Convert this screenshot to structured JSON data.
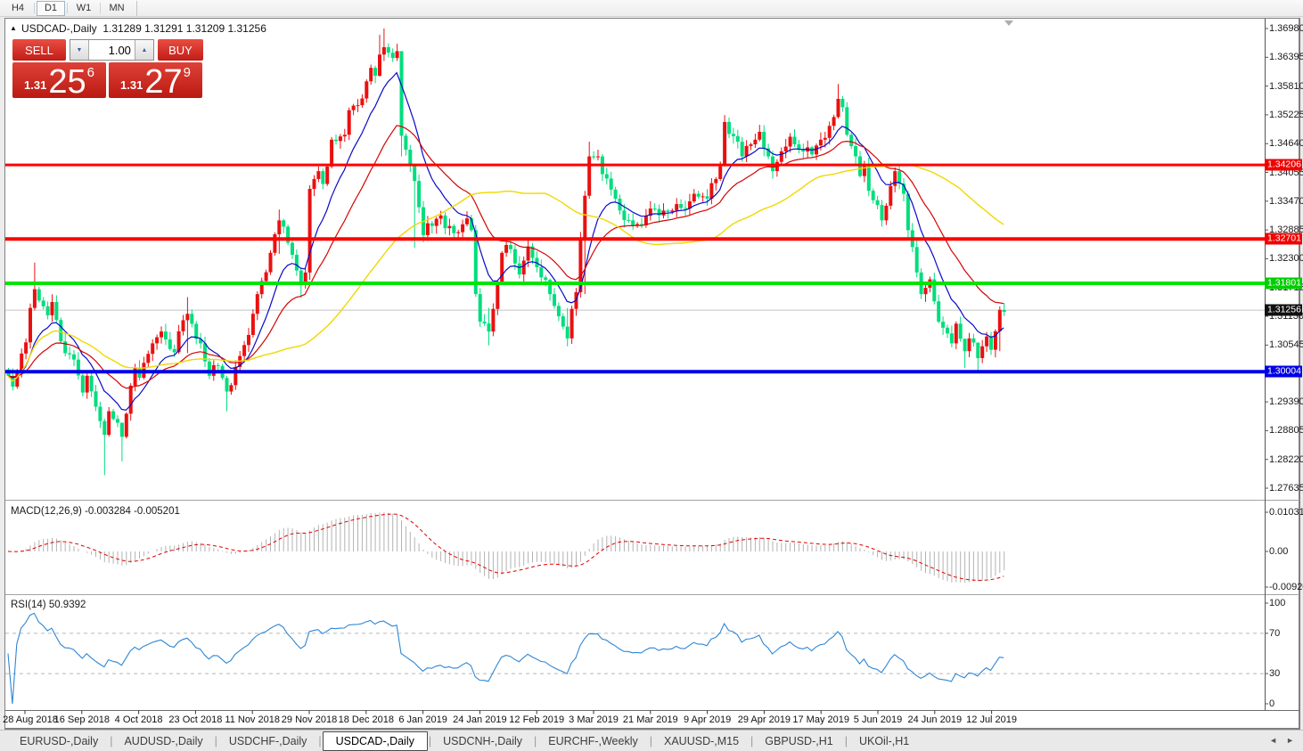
{
  "toolbar": {
    "buttons": [
      "H4",
      "D1",
      "W1",
      "MN"
    ],
    "active": "D1"
  },
  "header": {
    "arrow": "▲",
    "symbol": "USDCAD-,Daily",
    "ohlc": "1.31289 1.31291 1.31209 1.31256"
  },
  "trade_panel": {
    "sell_label": "SELL",
    "buy_label": "BUY",
    "volume": "1.00",
    "spinner_down": "▼",
    "spinner_up": "▲",
    "sell_price": {
      "prefix": "1.31",
      "big": "25",
      "sup": "6"
    },
    "buy_price": {
      "prefix": "1.31",
      "big": "27",
      "sup": "9"
    }
  },
  "price_axis": {
    "labels": [
      "1.36980",
      "1.36395",
      "1.35810",
      "1.35225",
      "1.34640",
      "1.34055",
      "1.33470",
      "1.32885",
      "1.32300",
      "1.31715",
      "1.31130",
      "1.30545",
      "1.29390",
      "1.28805",
      "1.28220",
      "1.27635"
    ]
  },
  "chips": [
    {
      "label": "1.34206",
      "price": 1.34206,
      "color": "#f20000"
    },
    {
      "label": "1.32701",
      "price": 1.32701,
      "color": "#f20000"
    },
    {
      "label": "1.31801",
      "price": 1.31801,
      "color": "#00ce00"
    },
    {
      "label": "1.31256",
      "price": 1.31256,
      "color": "#111111"
    },
    {
      "label": "1.30004",
      "price": 1.30004,
      "color": "#0000e6"
    }
  ],
  "macd_panel": {
    "label": "MACD(12,26,9) -0.003284 -0.005201",
    "axis_labels": [
      "0.010311",
      "0.00",
      "-0.009203"
    ],
    "histogram_color": "#b2b2b2",
    "signal_color": "#e00000"
  },
  "rsi_panel": {
    "label": "RSI(14) 50.9392",
    "axis_labels": [
      "100",
      "70",
      "30",
      "0"
    ],
    "axis_values": [
      100,
      70,
      30,
      0
    ],
    "levels": [
      70,
      30
    ],
    "line_color": "#2e86d5"
  },
  "dates": [
    "28 Aug 2018",
    "16 Sep 2018",
    "4 Oct 2018",
    "23 Oct 2018",
    "11 Nov 2018",
    "29 Nov 2018",
    "18 Dec 2018",
    "6 Jan 2019",
    "24 Jan 2019",
    "12 Feb 2019",
    "3 Mar 2019",
    "21 Mar 2019",
    "9 Apr 2019",
    "29 Apr 2019",
    "17 May 2019",
    "5 Jun 2019",
    "24 Jun 2019",
    "12 Jul 2019"
  ],
  "tabs": {
    "items": [
      "EURUSD-,Daily",
      "AUDUSD-,Daily",
      "USDCHF-,Daily",
      "USDCAD-,Daily",
      "USDCNH-,Daily",
      "EURCHF-,Weekly",
      "XAUUSD-,M15",
      "GBPUSD-,H1",
      "UKOil-,H1"
    ],
    "active": "USDCAD-,Daily",
    "scroll_left": "◄",
    "scroll_right": "►"
  },
  "chart_data": {
    "type": "candlestick",
    "symbol": "USDCAD",
    "timeframe": "Daily",
    "bar_count": 229,
    "bull_color": "#ea1010",
    "bear_color": "#00dd7d",
    "current_price": 1.31256,
    "price_top_label": 1.3698,
    "price_bottom_label": 1.27635,
    "hlines": [
      {
        "price": 1.34206,
        "color": "#ff0000",
        "width": 3
      },
      {
        "price": 1.32701,
        "color": "#ff0000",
        "width": 4
      },
      {
        "price": 1.31801,
        "color": "#00e400",
        "width": 4
      },
      {
        "price": 1.30004,
        "color": "#0000e6",
        "width": 4
      }
    ],
    "ma_lines": [
      {
        "name": "fast",
        "type": "ema",
        "period": 10,
        "color": "#0a0ac8"
      },
      {
        "name": "medium",
        "type": "ema",
        "period": 24,
        "color": "#d40404"
      },
      {
        "name": "slow",
        "type": "sma",
        "period": 55,
        "color": "#f0d800"
      }
    ],
    "macd": {
      "fast": 12,
      "slow": 26,
      "signal": 9,
      "value": -0.003284,
      "signal_value": -0.005201
    },
    "rsi": {
      "period": 14,
      "value": 50.9392
    },
    "close_waypoints": [
      [
        0,
        1.2992
      ],
      [
        1,
        1.297
      ],
      [
        4,
        1.306
      ],
      [
        5,
        1.313
      ],
      [
        6,
        1.3168
      ],
      [
        9,
        1.3115
      ],
      [
        10,
        1.3142
      ],
      [
        12,
        1.3062
      ],
      [
        15,
        1.3025
      ],
      [
        17,
        1.2958
      ],
      [
        18,
        1.2992
      ],
      [
        21,
        1.29
      ],
      [
        22,
        1.2872
      ],
      [
        23,
        1.292
      ],
      [
        26,
        1.2868
      ],
      [
        28,
        1.2972
      ],
      [
        29,
        1.3008
      ],
      [
        30,
        1.2988
      ],
      [
        33,
        1.3058
      ],
      [
        35,
        1.3082
      ],
      [
        38,
        1.304
      ],
      [
        40,
        1.3105
      ],
      [
        41,
        1.3118
      ],
      [
        44,
        1.3058
      ],
      [
        46,
        1.2992
      ],
      [
        48,
        1.3012
      ],
      [
        50,
        1.296
      ],
      [
        52,
        1.301
      ],
      [
        55,
        1.3075
      ],
      [
        57,
        1.3158
      ],
      [
        60,
        1.3242
      ],
      [
        62,
        1.3308
      ],
      [
        65,
        1.3238
      ],
      [
        67,
        1.3178
      ],
      [
        68,
        1.3202
      ],
      [
        69,
        1.3372
      ],
      [
        71,
        1.3408
      ],
      [
        72,
        1.3382
      ],
      [
        74,
        1.3472
      ],
      [
        77,
        1.3482
      ],
      [
        78,
        1.3532
      ],
      [
        80,
        1.3542
      ],
      [
        83,
        1.3618
      ],
      [
        84,
        1.3602
      ],
      [
        85,
        1.3645
      ],
      [
        86,
        1.366
      ],
      [
        88,
        1.3638
      ],
      [
        89,
        1.3652
      ],
      [
        90,
        1.348
      ],
      [
        93,
        1.3388
      ],
      [
        95,
        1.3278
      ],
      [
        96,
        1.3302
      ],
      [
        99,
        1.3318
      ],
      [
        100,
        1.3292
      ],
      [
        102,
        1.3282
      ],
      [
        105,
        1.3312
      ],
      [
        106,
        1.3288
      ],
      [
        107,
        1.3158
      ],
      [
        108,
        1.3102
      ],
      [
        110,
        1.3082
      ],
      [
        111,
        1.3128
      ],
      [
        113,
        1.3242
      ],
      [
        114,
        1.3258
      ],
      [
        117,
        1.3198
      ],
      [
        119,
        1.3255
      ],
      [
        122,
        1.3192
      ],
      [
        124,
        1.3158
      ],
      [
        127,
        1.3092
      ],
      [
        128,
        1.3068
      ],
      [
        129,
        1.3128
      ],
      [
        130,
        1.3162
      ],
      [
        132,
        1.3358
      ],
      [
        133,
        1.3438
      ],
      [
        135,
        1.3438
      ],
      [
        136,
        1.3402
      ],
      [
        139,
        1.3352
      ],
      [
        140,
        1.3328
      ],
      [
        142,
        1.3308
      ],
      [
        145,
        1.3298
      ],
      [
        147,
        1.3332
      ],
      [
        150,
        1.3328
      ],
      [
        152,
        1.3328
      ],
      [
        155,
        1.3332
      ],
      [
        157,
        1.3362
      ],
      [
        160,
        1.3352
      ],
      [
        162,
        1.3392
      ],
      [
        163,
        1.3418
      ],
      [
        164,
        1.3508
      ],
      [
        167,
        1.3468
      ],
      [
        168,
        1.3438
      ],
      [
        171,
        1.3472
      ],
      [
        172,
        1.3488
      ],
      [
        174,
        1.3438
      ],
      [
        175,
        1.3408
      ],
      [
        178,
        1.3458
      ],
      [
        179,
        1.3478
      ],
      [
        181,
        1.3452
      ],
      [
        184,
        1.3442
      ],
      [
        186,
        1.3472
      ],
      [
        189,
        1.3518
      ],
      [
        190,
        1.3555
      ],
      [
        191,
        1.3538
      ],
      [
        192,
        1.3482
      ],
      [
        194,
        1.3438
      ],
      [
        195,
        1.3398
      ],
      [
        196,
        1.3422
      ],
      [
        197,
        1.3368
      ],
      [
        200,
        1.3308
      ],
      [
        202,
        1.3378
      ],
      [
        203,
        1.3408
      ],
      [
        205,
        1.3362
      ],
      [
        206,
        1.3288
      ],
      [
        208,
        1.3202
      ],
      [
        209,
        1.3158
      ],
      [
        211,
        1.3188
      ],
      [
        213,
        1.3102
      ],
      [
        216,
        1.3058
      ],
      [
        217,
        1.3098
      ],
      [
        219,
        1.3042
      ],
      [
        220,
        1.3068
      ],
      [
        222,
        1.3028
      ],
      [
        223,
        1.3052
      ],
      [
        224,
        1.3072
      ],
      [
        225,
        1.3045
      ],
      [
        227,
        1.3126
      ],
      [
        228,
        1.3122
      ]
    ],
    "wick_overrides": {
      "6": [
        1.3222,
        1.3125
      ],
      "22": [
        1.2905,
        1.279
      ],
      "26": [
        1.2895,
        1.2818
      ],
      "41": [
        1.3152,
        1.3038
      ],
      "50": [
        1.2992,
        1.292
      ],
      "62": [
        1.333,
        1.324
      ],
      "67": [
        1.3212,
        1.315
      ],
      "85": [
        1.3685,
        1.36
      ],
      "86": [
        1.3698,
        1.3632
      ],
      "90": [
        1.3652,
        1.3438
      ],
      "93": [
        1.3342,
        1.3252
      ],
      "110": [
        1.313,
        1.3054
      ],
      "128": [
        1.313,
        1.3052
      ],
      "132": [
        1.3368,
        1.3158
      ],
      "133": [
        1.3468,
        1.3352
      ],
      "164": [
        1.3522,
        1.3418
      ],
      "190": [
        1.3585,
        1.3515
      ],
      "206": [
        1.3368,
        1.327
      ],
      "219": [
        1.3062,
        1.3008
      ],
      "222": [
        1.3048,
        1.2998
      ],
      "227": [
        1.3133,
        1.3042
      ]
    }
  }
}
